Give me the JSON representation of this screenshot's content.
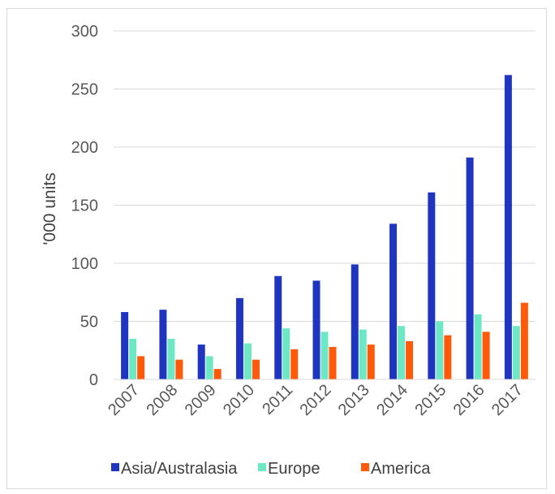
{
  "chart_data": {
    "type": "bar",
    "title": "",
    "xlabel": "",
    "ylabel": "'000 units",
    "ylim": [
      0,
      300
    ],
    "yticks": [
      0,
      50,
      100,
      150,
      200,
      250,
      300
    ],
    "grid": true,
    "legend_position": "bottom",
    "categories": [
      "2007",
      "2008",
      "2009",
      "2010",
      "2011",
      "2012",
      "2013",
      "2014",
      "2015",
      "2016",
      "2017"
    ],
    "series": [
      {
        "name": "Asia/Australasia",
        "color": "#1f35c0",
        "values": [
          58,
          60,
          30,
          70,
          89,
          85,
          99,
          134,
          161,
          191,
          262
        ]
      },
      {
        "name": "Europe",
        "color": "#6ee8c4",
        "values": [
          35,
          35,
          20,
          31,
          44,
          41,
          43,
          46,
          50,
          56,
          46
        ]
      },
      {
        "name": "America",
        "color": "#ff5a0a",
        "values": [
          20,
          17,
          9,
          17,
          26,
          28,
          30,
          33,
          38,
          41,
          66
        ]
      }
    ]
  }
}
